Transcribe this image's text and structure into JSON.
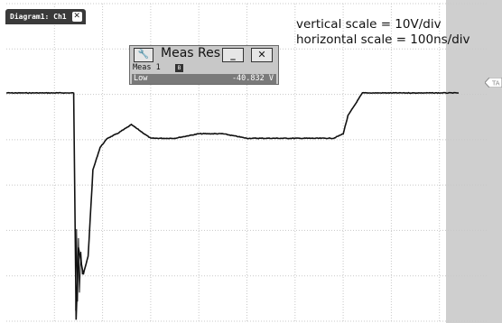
{
  "tab": {
    "label": "Diagram1: Ch1",
    "close_icon": "close-icon"
  },
  "annotations": [
    "vertical scale = 10V/div",
    "horizontal scale = 100ns/div"
  ],
  "meas_window": {
    "title": "Meas Res",
    "wrench_icon": "wrench-icon",
    "minimize_label": "_",
    "close_label": "✕",
    "meas_name": "Meas 1",
    "meas_tag": "B",
    "row_label": "Low",
    "row_value": "-40.832 V"
  },
  "trigger_marker_label": "TA",
  "colors": {
    "grid": "#c8c8c8",
    "trace": "#111111",
    "shade": "#cfcfcf",
    "panel": "#c8c8c8"
  },
  "chart_data": {
    "type": "line",
    "x_units": "ns",
    "y_units": "V",
    "x_divisions": 10,
    "y_divisions": 7,
    "x_per_div": 100,
    "y_per_div": 10,
    "series": [
      {
        "x": [
          0,
          140,
          145,
          150,
          160,
          170,
          180,
          195,
          210,
          230,
          260,
          300,
          350,
          400,
          450,
          500,
          550,
          600,
          640,
          680,
          700,
          710,
          740,
          800,
          860,
          900,
          940
        ],
        "values": [
          0,
          0,
          -50,
          -34,
          -40,
          -36,
          -17,
          -12,
          -10,
          -9,
          -7,
          -10,
          -10,
          -9,
          -9,
          -10,
          -10,
          -10,
          -10,
          -10,
          -9,
          -5,
          0,
          0,
          0,
          0,
          0
        ]
      }
    ],
    "grid": true
  }
}
